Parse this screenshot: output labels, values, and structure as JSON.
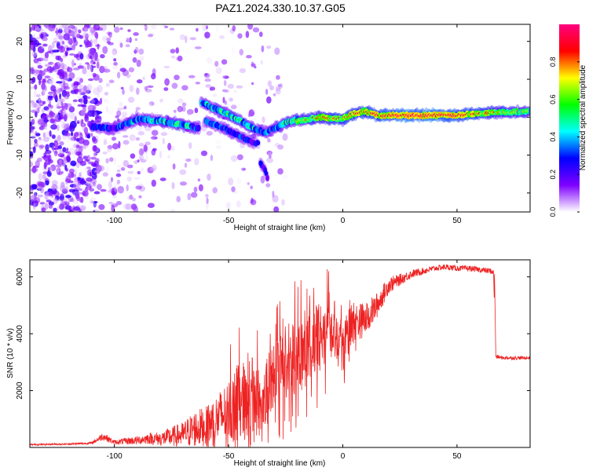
{
  "figure_title": "PAZ1.2024.330.10.37.G05",
  "chart_data": [
    {
      "type": "heatmap",
      "title": "PAZ1.2024.330.10.37.G05",
      "xlabel": "Height of straight line (km)",
      "ylabel": "Frequency (Hz)",
      "xlim": [
        -137,
        82
      ],
      "ylim": [
        -25,
        24.5
      ],
      "xticks": [
        -100,
        -50,
        0,
        50
      ],
      "yticks": [
        -20,
        -10,
        0,
        10,
        20
      ],
      "colorbar": {
        "label": "Normalized spectral amplitude",
        "range": [
          0,
          1
        ],
        "ticks": [
          "0.0",
          "0.2",
          "0.4",
          "0.6",
          "0.8"
        ],
        "colors": [
          "#ffffff",
          "#7f00ff",
          "#0000ff",
          "#00ffff",
          "#00ff00",
          "#ffff00",
          "#ff0000",
          "#ff0080"
        ]
      },
      "ridge": {
        "segments": [
          {
            "height_km": [
              -110,
              -100,
              -90,
              -80,
              -70,
              -63
            ],
            "frequency_hz": [
              -2.5,
              -3.0,
              -0.5,
              -1.0,
              -2.0,
              -3.0
            ],
            "amplitude": [
              0.3,
              0.35,
              0.45,
              0.5,
              0.55,
              0.4
            ]
          },
          {
            "height_km": [
              -62,
              -55,
              -48,
              -42,
              -37,
              -34,
              -30,
              -25,
              -20
            ],
            "frequency_hz": [
              4.0,
              2.0,
              0.0,
              -2.0,
              -3.5,
              -4.0,
              -3.0,
              -1.5,
              -0.5
            ],
            "amplitude": [
              0.45,
              0.5,
              0.55,
              0.5,
              0.45,
              0.4,
              0.45,
              0.55,
              0.6
            ]
          },
          {
            "height_km": [
              -60,
              -52,
              -45,
              -40,
              -37
            ],
            "frequency_hz": [
              -1.0,
              -3.0,
              -5.0,
              -6.5,
              -7.0
            ],
            "amplitude": [
              0.35,
              0.4,
              0.35,
              0.3,
              0.25
            ]
          },
          {
            "height_km": [
              -36,
              -34,
              -33
            ],
            "frequency_hz": [
              -12.0,
              -14.0,
              -16.0
            ],
            "amplitude": [
              0.35,
              0.3,
              0.25
            ]
          },
          {
            "height_km": [
              -20,
              -10,
              0,
              5,
              10,
              15,
              30,
              50,
              65,
              82
            ],
            "frequency_hz": [
              -1.0,
              0.0,
              -0.5,
              1.0,
              1.5,
              0.5,
              0.5,
              0.5,
              1.2,
              1.5
            ],
            "amplitude": [
              0.65,
              0.75,
              0.8,
              0.85,
              0.85,
              0.9,
              1.0,
              0.95,
              0.75,
              0.6
            ]
          }
        ]
      }
    },
    {
      "type": "line",
      "xlabel": "Height of straight line (km)",
      "ylabel": "SNR (10 * v/v)",
      "xlim": [
        -137,
        82
      ],
      "ylim": [
        0,
        6600
      ],
      "xticks": [
        -100,
        -50,
        0,
        50
      ],
      "yticks": [
        2000,
        4000,
        6000
      ],
      "series": [
        {
          "color": "#ee2222",
          "x": [
            -137,
            -120,
            -110,
            -105,
            -100,
            -95,
            -90,
            -85,
            -80,
            -75,
            -70,
            -65,
            -60,
            -55,
            -50,
            -45,
            -40,
            -35,
            -30,
            -25,
            -20,
            -15,
            -10,
            -5,
            0,
            5,
            10,
            15,
            20,
            25,
            30,
            35,
            40,
            45,
            50,
            55,
            60,
            65,
            66,
            67,
            70,
            75,
            82
          ],
          "y": [
            100,
            120,
            150,
            400,
            180,
            220,
            250,
            320,
            300,
            380,
            450,
            650,
            750,
            1000,
            1300,
            1700,
            1800,
            1500,
            2600,
            3000,
            3300,
            3500,
            3900,
            4500,
            3600,
            4400,
            4500,
            5000,
            5700,
            5900,
            6100,
            6200,
            6300,
            6350,
            6300,
            6300,
            6250,
            6200,
            6150,
            3200,
            3150,
            3150,
            3150
          ],
          "spread": [
            30,
            30,
            40,
            150,
            80,
            120,
            150,
            200,
            250,
            350,
            450,
            650,
            700,
            900,
            1100,
            1300,
            1400,
            1400,
            1200,
            1400,
            1400,
            1300,
            1200,
            1100,
            1000,
            700,
            600,
            450,
            300,
            200,
            150,
            120,
            100,
            100,
            100,
            100,
            100,
            100,
            100,
            80,
            60,
            60,
            60
          ]
        }
      ]
    }
  ]
}
